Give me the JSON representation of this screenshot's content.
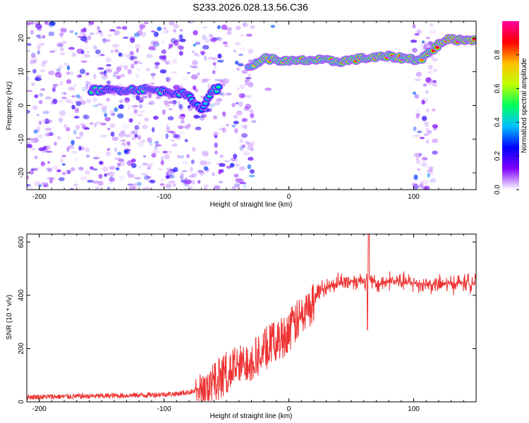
{
  "title": "S233.2026.028.13.56.C36",
  "chart_data": [
    {
      "type": "heatmap",
      "name": "spectrogram",
      "xlabel": "Height of straight line (km)",
      "ylabel": "Frequency (Hz)",
      "xlim": [
        -210,
        150
      ],
      "ylim": [
        -25,
        25
      ],
      "xticks": [
        -200,
        -100,
        0,
        100
      ],
      "yticks": [
        -20,
        -10,
        0,
        10,
        20
      ],
      "colorbar": {
        "label": "Normalized spectral amplitude",
        "range": [
          0,
          1
        ],
        "ticks": [
          0.0,
          0.2,
          0.4,
          0.6,
          0.8
        ],
        "colors": [
          "#ffffff",
          "#8000ff",
          "#0000ff",
          "#00c0ff",
          "#00ff60",
          "#c0ff00",
          "#ffc000",
          "#ff0000",
          "#ff00a0"
        ]
      },
      "ridge": [
        {
          "x": -158,
          "y": 4.5,
          "a": 0.5
        },
        {
          "x": -145,
          "y": 4.5,
          "a": 0.45
        },
        {
          "x": -115,
          "y": 4.8,
          "a": 0.5
        },
        {
          "x": -95,
          "y": 4.0,
          "a": 0.45
        },
        {
          "x": -85,
          "y": 3.5,
          "a": 0.45
        },
        {
          "x": -78,
          "y": 2.0,
          "a": 0.4
        },
        {
          "x": -70,
          "y": -1.5,
          "a": 0.35
        },
        {
          "x": -62,
          "y": 4.5,
          "a": 0.45
        },
        {
          "x": -55,
          "y": 5.0,
          "a": 0.45
        },
        {
          "x": -32,
          "y": 11.0,
          "a": 0.7
        },
        {
          "x": -20,
          "y": 14.0,
          "a": 0.8
        },
        {
          "x": 0,
          "y": 13.0,
          "a": 0.85
        },
        {
          "x": 20,
          "y": 13.5,
          "a": 0.85
        },
        {
          "x": 40,
          "y": 13.0,
          "a": 0.85
        },
        {
          "x": 60,
          "y": 14.0,
          "a": 0.85
        },
        {
          "x": 80,
          "y": 14.5,
          "a": 0.85
        },
        {
          "x": 105,
          "y": 13.5,
          "a": 0.8
        },
        {
          "x": 125,
          "y": 19.5,
          "a": 0.95
        },
        {
          "x": 150,
          "y": 19.5,
          "a": 0.95
        }
      ]
    },
    {
      "type": "line",
      "name": "snr",
      "xlabel": "Height of straight line (km)",
      "ylabel": "SNR (10 * v/v)",
      "xlim": [
        -210,
        150
      ],
      "ylim": [
        0,
        630
      ],
      "xticks": [
        -200,
        -100,
        0,
        100
      ],
      "yticks": [
        0,
        200,
        400,
        600
      ],
      "color": "#ee3333",
      "x": [
        -210,
        -180,
        -150,
        -120,
        -90,
        -75,
        -65,
        -55,
        -45,
        -35,
        -25,
        -15,
        -5,
        5,
        15,
        25,
        40,
        55,
        64,
        70,
        80,
        100,
        120,
        150
      ],
      "y": [
        18,
        20,
        22,
        25,
        30,
        40,
        60,
        110,
        140,
        160,
        190,
        230,
        260,
        310,
        360,
        420,
        450,
        455,
        460,
        440,
        455,
        445,
        440,
        450
      ]
    }
  ]
}
